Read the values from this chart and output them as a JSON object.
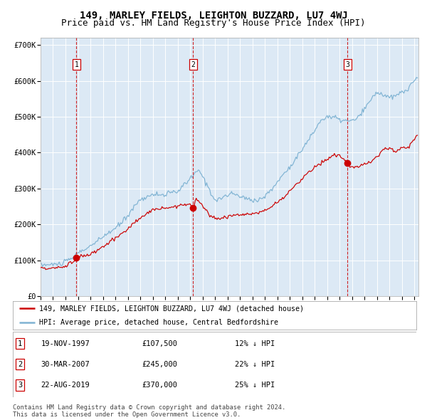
{
  "title": "149, MARLEY FIELDS, LEIGHTON BUZZARD, LU7 4WJ",
  "subtitle": "Price paid vs. HM Land Registry's House Price Index (HPI)",
  "title_fontsize": 10,
  "subtitle_fontsize": 9,
  "background_color": "#dce9f5",
  "fig_bg_color": "#ffffff",
  "ytick_labels": [
    "£0",
    "£100K",
    "£200K",
    "£300K",
    "£400K",
    "£500K",
    "£600K",
    "£700K"
  ],
  "yticks": [
    0,
    100000,
    200000,
    300000,
    400000,
    500000,
    600000,
    700000
  ],
  "sale_dates": [
    "1997-11-19",
    "2007-03-30",
    "2019-08-22"
  ],
  "sale_prices": [
    107500,
    245000,
    370000
  ],
  "sale_labels": [
    "1",
    "2",
    "3"
  ],
  "sale_info": [
    [
      "1",
      "19-NOV-1997",
      "£107,500",
      "12% ↓ HPI"
    ],
    [
      "2",
      "30-MAR-2007",
      "£245,000",
      "22% ↓ HPI"
    ],
    [
      "3",
      "22-AUG-2019",
      "£370,000",
      "25% ↓ HPI"
    ]
  ],
  "legend_line1": "149, MARLEY FIELDS, LEIGHTON BUZZARD, LU7 4WJ (detached house)",
  "legend_line2": "HPI: Average price, detached house, Central Bedfordshire",
  "footer_line1": "Contains HM Land Registry data © Crown copyright and database right 2024.",
  "footer_line2": "This data is licensed under the Open Government Licence v3.0.",
  "red_line_color": "#cc0000",
  "blue_line_color": "#7fb3d3",
  "vline_color": "#cc0000",
  "marker_color": "#cc0000",
  "grid_color": "#ffffff",
  "tick_fontsize": 7.5,
  "x_start_year": 1995,
  "x_end_year": 2025,
  "ylim": [
    0,
    720000
  ]
}
